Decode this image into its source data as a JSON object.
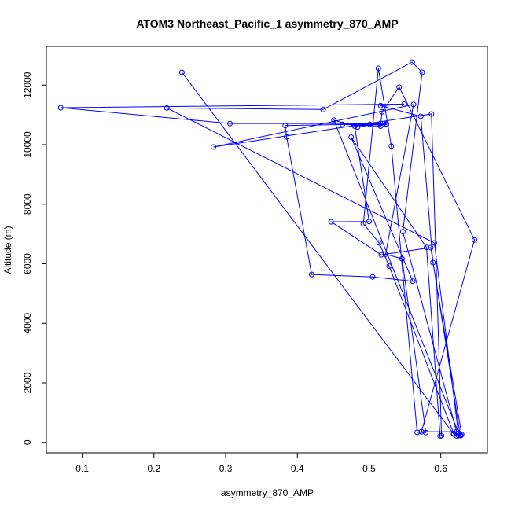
{
  "chart_data": {
    "type": "line",
    "title": "ATOM3 Northeast_Pacific_1 asymmetry_870_AMP",
    "xlabel": "asymmetry_870_AMP",
    "ylabel": "Altitude (m)",
    "xlim": [
      0.05,
      0.665
    ],
    "ylim": [
      -350,
      13300
    ],
    "xticks": [
      0.1,
      0.2,
      0.3,
      0.4,
      0.5,
      0.6
    ],
    "xtick_labels": [
      "0.1",
      "0.2",
      "0.3",
      "0.4",
      "0.5",
      "0.6"
    ],
    "yticks": [
      0,
      2000,
      4000,
      6000,
      8000,
      10000,
      12000
    ],
    "ytick_labels": [
      "0",
      "2000",
      "4000",
      "6000",
      "8000",
      "10000",
      "12000"
    ],
    "grid": false,
    "series": [
      {
        "color": "#0000ff",
        "marker": "open-circle",
        "points": [
          [
            0.239,
            12430
          ],
          [
            0.618,
            280
          ],
          [
            0.628,
            230
          ],
          [
            0.622,
            220
          ],
          [
            0.618,
            300
          ],
          [
            0.528,
            5920
          ],
          [
            0.514,
            6700
          ],
          [
            0.492,
            7350
          ],
          [
            0.513,
            12560
          ],
          [
            0.531,
            9950
          ],
          [
            0.567,
            340
          ],
          [
            0.579,
            330
          ],
          [
            0.546,
            6170
          ],
          [
            0.523,
            6320
          ],
          [
            0.562,
            11350
          ],
          [
            0.283,
            9920
          ],
          [
            0.587,
            11030
          ],
          [
            0.601,
            230
          ],
          [
            0.599,
            210
          ],
          [
            0.58,
            6550
          ],
          [
            0.475,
            10250
          ],
          [
            0.561,
            5410
          ],
          [
            0.505,
            5560
          ],
          [
            0.42,
            5640
          ],
          [
            0.385,
            10260
          ],
          [
            0.383,
            10640
          ],
          [
            0.524,
            10700
          ],
          [
            0.524,
            10670
          ],
          [
            0.463,
            10680
          ],
          [
            0.516,
            10620
          ],
          [
            0.518,
            11100
          ],
          [
            0.542,
            11930
          ],
          [
            0.647,
            6800
          ],
          [
            0.573,
            360
          ],
          [
            0.622,
            360
          ],
          [
            0.547,
            7080
          ],
          [
            0.574,
            12430
          ],
          [
            0.56,
            12770
          ],
          [
            0.436,
            11180
          ],
          [
            0.218,
            11230
          ],
          [
            0.591,
            6700
          ],
          [
            0.625,
            230
          ],
          [
            0.629,
            270
          ],
          [
            0.589,
            6040
          ],
          [
            0.572,
            10950
          ],
          [
            0.516,
            11310
          ],
          [
            0.549,
            11360
          ],
          [
            0.07,
            11240
          ],
          [
            0.306,
            10710
          ],
          [
            0.516,
            10710
          ],
          [
            0.484,
            10590
          ],
          [
            0.451,
            10820
          ],
          [
            0.625,
            310
          ],
          [
            0.627,
            260
          ],
          [
            0.586,
            6540
          ],
          [
            0.517,
            6300
          ],
          [
            0.447,
            7410
          ],
          [
            0.5,
            7420
          ],
          [
            0.48,
            10620
          ],
          [
            0.501,
            10680
          ]
        ]
      }
    ]
  }
}
